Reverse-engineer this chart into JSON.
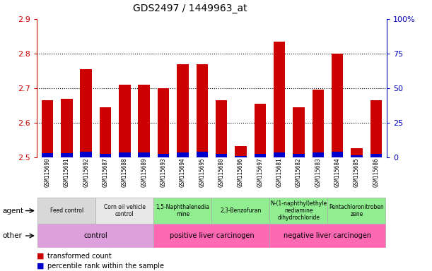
{
  "title": "GDS2497 / 1449963_at",
  "samples": [
    "GSM115690",
    "GSM115691",
    "GSM115692",
    "GSM115687",
    "GSM115688",
    "GSM115689",
    "GSM115693",
    "GSM115694",
    "GSM115695",
    "GSM115680",
    "GSM115696",
    "GSM115697",
    "GSM115681",
    "GSM115682",
    "GSM115683",
    "GSM115684",
    "GSM115685",
    "GSM115686"
  ],
  "red_values": [
    2.665,
    2.668,
    2.755,
    2.645,
    2.71,
    2.71,
    2.7,
    2.77,
    2.77,
    2.665,
    2.533,
    2.655,
    2.835,
    2.645,
    2.695,
    2.8,
    2.525,
    2.665
  ],
  "blue_values_pct": [
    3.0,
    3.0,
    4.0,
    2.5,
    3.5,
    3.5,
    2.5,
    3.5,
    4.0,
    2.5,
    1.0,
    2.5,
    3.5,
    2.5,
    3.5,
    4.0,
    1.5,
    2.5
  ],
  "ylim_left": [
    2.5,
    2.9
  ],
  "ylim_right": [
    0,
    100
  ],
  "yticks_left": [
    2.5,
    2.6,
    2.7,
    2.8,
    2.9
  ],
  "yticks_right": [
    0,
    25,
    50,
    75,
    100
  ],
  "ytick_right_labels": [
    "0",
    "25",
    "50",
    "75",
    "100%"
  ],
  "bar_width": 0.6,
  "agent_groups": [
    {
      "label": "Feed control",
      "start": 0,
      "end": 3,
      "color": "#d8d8d8"
    },
    {
      "label": "Corn oil vehicle\ncontrol",
      "start": 3,
      "end": 6,
      "color": "#e8e8e8"
    },
    {
      "label": "1,5-Naphthalenedia\nmine",
      "start": 6,
      "end": 9,
      "color": "#90ee90"
    },
    {
      "label": "2,3-Benzofuran",
      "start": 9,
      "end": 12,
      "color": "#90ee90"
    },
    {
      "label": "N-(1-naphthyl)ethyle\nnediamine\ndihydrochloride",
      "start": 12,
      "end": 15,
      "color": "#90ee90"
    },
    {
      "label": "Pentachloronitroben\nzene",
      "start": 15,
      "end": 18,
      "color": "#90ee90"
    }
  ],
  "other_groups": [
    {
      "label": "control",
      "start": 0,
      "end": 6,
      "color": "#dda0dd"
    },
    {
      "label": "positive liver carcinogen",
      "start": 6,
      "end": 12,
      "color": "#ff69b4"
    },
    {
      "label": "negative liver carcinogen",
      "start": 12,
      "end": 18,
      "color": "#ff69b4"
    }
  ],
  "agent_label": "agent",
  "other_label": "other",
  "legend_red": "transformed count",
  "legend_blue": "percentile rank within the sample",
  "bar_color_red": "#cc0000",
  "bar_color_blue": "#0000cc",
  "background_color": "#ffffff",
  "left_axis_color": "#cc0000",
  "right_axis_color": "#0000bb"
}
